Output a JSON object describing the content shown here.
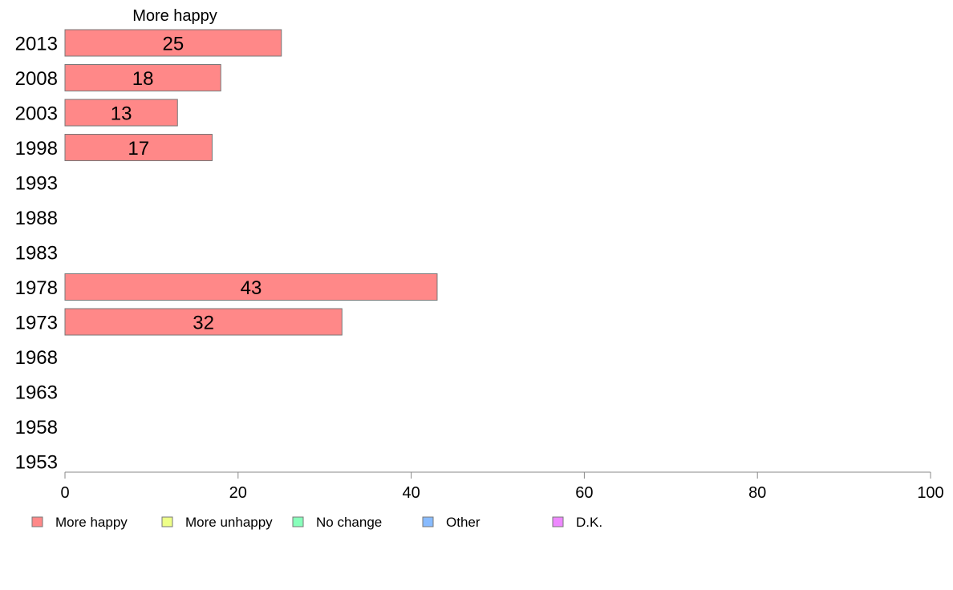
{
  "chart_data": {
    "type": "bar",
    "orientation": "horizontal",
    "series_title": "More happy",
    "categories": [
      "2013",
      "2008",
      "2003",
      "1998",
      "1993",
      "1988",
      "1983",
      "1978",
      "1973",
      "1968",
      "1963",
      "1958",
      "1953"
    ],
    "series": [
      {
        "name": "More happy",
        "values": [
          25,
          18,
          13,
          17,
          null,
          null,
          null,
          43,
          32,
          null,
          null,
          null,
          null
        ]
      }
    ],
    "xlim": [
      0,
      100
    ],
    "xticks": [
      0,
      20,
      40,
      60,
      80,
      100
    ],
    "grid": false,
    "legend_position": "bottom",
    "legend": [
      {
        "label": "More happy",
        "color": "#ff8888"
      },
      {
        "label": "More unhappy",
        "color": "#eeff88"
      },
      {
        "label": "No change",
        "color": "#88ffbb"
      },
      {
        "label": "Other",
        "color": "#88bbff"
      },
      {
        "label": "D.K.",
        "color": "#ee88ff"
      }
    ],
    "bar_color": "#ff8888",
    "bar_stroke": "#777777",
    "axis_color": "#888888"
  }
}
